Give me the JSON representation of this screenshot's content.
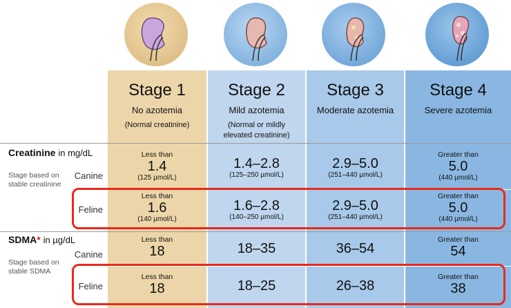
{
  "stages": [
    {
      "title": "Stage 1",
      "subtitle": "No azotemia",
      "note": "(Normal creatinine)"
    },
    {
      "title": "Stage 2",
      "subtitle": "Mild azotemia",
      "note": "(Normal or mildly elevated creatinine)"
    },
    {
      "title": "Stage 3",
      "subtitle": "Moderate azotemia",
      "note": ""
    },
    {
      "title": "Stage 4",
      "subtitle": "Severe azotemia",
      "note": ""
    }
  ],
  "creatinine": {
    "title": "Creatinine",
    "unit": "in mg/dL",
    "side_note": "Stage based on stable creatinine",
    "canine_label": "Canine",
    "feline_label": "Feline",
    "canine": [
      {
        "qual": "Less than",
        "value": "1.4",
        "unit": "(125 µmol/L)"
      },
      {
        "qual": "",
        "value": "1.4–2.8",
        "unit": "(125–250 µmol/L)"
      },
      {
        "qual": "",
        "value": "2.9–5.0",
        "unit": "(251–440 µmol/L)"
      },
      {
        "qual": "Greater than",
        "value": "5.0",
        "unit": "(440 µmol/L)"
      }
    ],
    "feline": [
      {
        "qual": "Less than",
        "value": "1.6",
        "unit": "(140 µmol/L)"
      },
      {
        "qual": "",
        "value": "1.6–2.8",
        "unit": "(140–250 µmol/L)"
      },
      {
        "qual": "",
        "value": "2.9–5.0",
        "unit": "(251–440 µmol/L)"
      },
      {
        "qual": "Greater than",
        "value": "5.0",
        "unit": "(440 µmol/L)"
      }
    ]
  },
  "sdma": {
    "title": "SDMA",
    "asterisk": "*",
    "unit": "in µg/dL",
    "side_note": "Stage based on stable SDMA",
    "canine_label": "Canine",
    "feline_label": "Feline",
    "canine": [
      {
        "qual": "Less than",
        "value": "18"
      },
      {
        "qual": "",
        "value": "18–35"
      },
      {
        "qual": "",
        "value": "36–54"
      },
      {
        "qual": "Greater than",
        "value": "54"
      }
    ],
    "feline": [
      {
        "qual": "Less than",
        "value": "18"
      },
      {
        "qual": "",
        "value": "18–25"
      },
      {
        "qual": "",
        "value": "26–38"
      },
      {
        "qual": "Greater than",
        "value": "38"
      }
    ]
  },
  "icons": [
    "kidney-icon-stage-1",
    "kidney-icon-stage-2",
    "kidney-icon-stage-3",
    "kidney-icon-stage-4"
  ],
  "colors": {
    "stage1": "#ecd6a9",
    "stage2": "#bfd6ee",
    "stage3": "#a8c9e9",
    "stage4": "#8ab7e2",
    "highlight": "#e8291b"
  }
}
